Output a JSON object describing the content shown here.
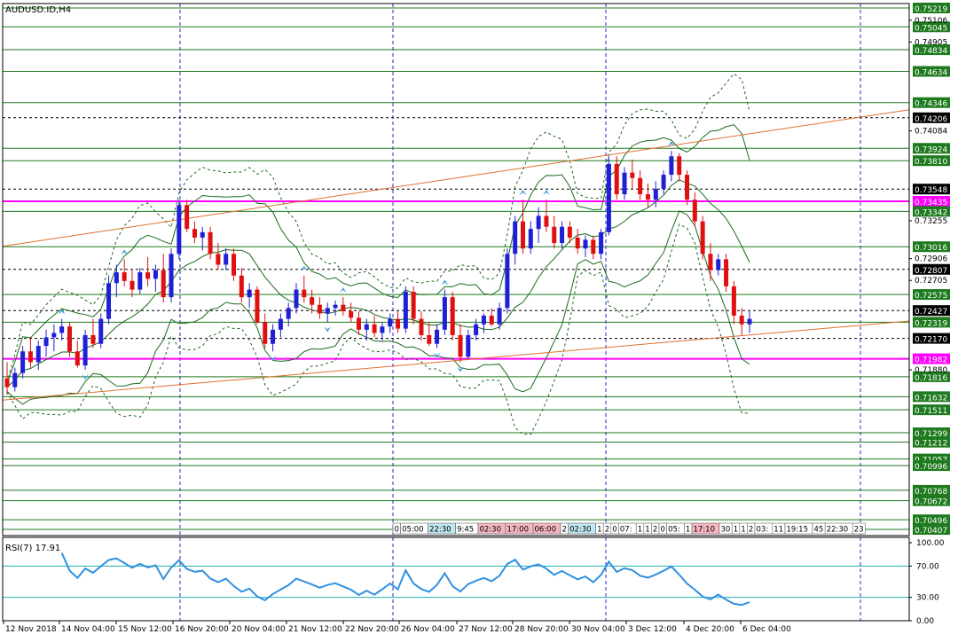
{
  "window": {
    "symbol_title": "AUDUSD.ID,H4"
  },
  "rsi": {
    "label": "RSI(7) 17.91",
    "levels": [
      "100.00",
      "70.00",
      "30.00",
      "0.00"
    ]
  },
  "colors": {
    "bull": "#1f1fd6",
    "bear": "#e01010",
    "grid_v": "#2a2acd",
    "hline_green": "#1e7a1e",
    "hline_magenta": "#ff00ff",
    "hline_dash": "#000000",
    "trend": "#e07030",
    "rsi_line": "#3090e0",
    "rsi_level": "#20b0b0",
    "bb": "#1a6a1a",
    "label_green": "#1e7a1e",
    "label_black": "#000000",
    "label_magenta": "#ff00ff"
  },
  "time_axis": {
    "labels": [
      "12 Nov 2018",
      "14 Nov 04:00",
      "15 Nov 12:00",
      "16 Nov 20:00",
      "20 Nov 04:00",
      "21 Nov 12:00",
      "22 Nov 20:00",
      "26 Nov 04:00",
      "27 Nov 12:00",
      "28 Nov 20:00",
      "30 Nov 04:00",
      "3 Dec 12:00",
      "4 Dec 20:00",
      "6 Dec 04:00"
    ]
  },
  "session_strip": {
    "cells": [
      {
        "text": "0",
        "bg": "#ffffff"
      },
      {
        "text": "05:00",
        "bg": "#ffffff"
      },
      {
        "text": "22:30",
        "bg": "#bfe8f0"
      },
      {
        "text": "9:45",
        "bg": "#ffffff"
      },
      {
        "text": "02:30",
        "bg": "#f5b6c0"
      },
      {
        "text": "17:00",
        "bg": "#f5b6c0"
      },
      {
        "text": "06:00",
        "bg": "#f5b6c0"
      },
      {
        "text": "2",
        "bg": "#ffffff"
      },
      {
        "text": "02:30",
        "bg": "#bfe8f0"
      },
      {
        "text": "1",
        "bg": "#ffffff"
      },
      {
        "text": "2",
        "bg": "#ffffff"
      },
      {
        "text": "0",
        "bg": "#ffffff"
      },
      {
        "text": "07:",
        "bg": "#ffffff"
      },
      {
        "text": "1",
        "bg": "#ffffff"
      },
      {
        "text": "1",
        "bg": "#ffffff"
      },
      {
        "text": "2",
        "bg": "#ffffff"
      },
      {
        "text": "0",
        "bg": "#ffffff"
      },
      {
        "text": "05:",
        "bg": "#ffffff"
      },
      {
        "text": "1",
        "bg": "#ffffff"
      },
      {
        "text": "17:10",
        "bg": "#f5b6c0"
      },
      {
        "text": "30",
        "bg": "#ffffff"
      },
      {
        "text": "1",
        "bg": "#ffffff"
      },
      {
        "text": "1",
        "bg": "#ffffff"
      },
      {
        "text": "2",
        "bg": "#ffffff"
      },
      {
        "text": "03:",
        "bg": "#ffffff"
      },
      {
        "text": "11",
        "bg": "#ffffff"
      },
      {
        "text": "19:15",
        "bg": "#ffffff"
      },
      {
        "text": "45",
        "bg": "#ffffff"
      },
      {
        "text": "22:30",
        "bg": "#ffffff"
      },
      {
        "text": "23",
        "bg": "#ffffff"
      }
    ]
  },
  "chart_data": {
    "type": "candlestick",
    "symbol": "AUDUSD.ID",
    "timeframe": "H4",
    "ylim": [
      0.7035,
      0.7526
    ],
    "price_scale_labels": [
      "0.75106",
      "0.74905",
      "0.74084",
      "0.73255",
      "0.72906",
      "0.72705",
      "0.71880"
    ],
    "levels": [
      {
        "price": "0.75219",
        "style": "green"
      },
      {
        "price": "0.75045",
        "style": "green"
      },
      {
        "price": "0.74834",
        "style": "green"
      },
      {
        "price": "0.74634",
        "style": "green"
      },
      {
        "price": "0.74346",
        "style": "green"
      },
      {
        "price": "0.74206",
        "style": "dash"
      },
      {
        "price": "0.73924",
        "style": "green"
      },
      {
        "price": "0.73810",
        "style": "green"
      },
      {
        "price": "0.73548",
        "style": "dash"
      },
      {
        "price": "0.73435",
        "style": "magenta"
      },
      {
        "price": "0.73342",
        "style": "green"
      },
      {
        "price": "0.73016",
        "style": "green"
      },
      {
        "price": "0.72807",
        "style": "dash"
      },
      {
        "price": "0.72575",
        "style": "green"
      },
      {
        "price": "0.72427",
        "style": "dash"
      },
      {
        "price": "0.72319",
        "style": "green"
      },
      {
        "price": "0.72170",
        "style": "dash"
      },
      {
        "price": "0.71982",
        "style": "magenta"
      },
      {
        "price": "0.71816",
        "style": "green"
      },
      {
        "price": "0.71632",
        "style": "green"
      },
      {
        "price": "0.71511",
        "style": "green"
      },
      {
        "price": "0.71299",
        "style": "green"
      },
      {
        "price": "0.71212",
        "style": "green"
      },
      {
        "price": "0.71057",
        "style": "green"
      },
      {
        "price": "0.70996",
        "style": "green"
      },
      {
        "price": "0.70768",
        "style": "green"
      },
      {
        "price": "0.70672",
        "style": "green"
      },
      {
        "price": "0.70496",
        "style": "green"
      },
      {
        "price": "0.70407",
        "style": "green"
      }
    ],
    "candles": [
      [
        0.718,
        0.7195,
        0.7165,
        0.7172
      ],
      [
        0.7172,
        0.719,
        0.7168,
        0.7185
      ],
      [
        0.7185,
        0.721,
        0.718,
        0.7205
      ],
      [
        0.7205,
        0.7218,
        0.719,
        0.7195
      ],
      [
        0.7195,
        0.7215,
        0.7188,
        0.721
      ],
      [
        0.721,
        0.7225,
        0.72,
        0.7218
      ],
      [
        0.7218,
        0.723,
        0.7205,
        0.7222
      ],
      [
        0.7222,
        0.7235,
        0.7215,
        0.7228
      ],
      [
        0.7228,
        0.7232,
        0.72,
        0.7205
      ],
      [
        0.7205,
        0.7215,
        0.719,
        0.7192
      ],
      [
        0.7192,
        0.7225,
        0.7188,
        0.722
      ],
      [
        0.722,
        0.7235,
        0.7208,
        0.7212
      ],
      [
        0.7212,
        0.724,
        0.7208,
        0.7235
      ],
      [
        0.7235,
        0.7275,
        0.723,
        0.7268
      ],
      [
        0.7268,
        0.7285,
        0.7255,
        0.7278
      ],
      [
        0.7278,
        0.729,
        0.7265,
        0.727
      ],
      [
        0.727,
        0.728,
        0.7255,
        0.7262
      ],
      [
        0.7262,
        0.7282,
        0.7258,
        0.7278
      ],
      [
        0.7278,
        0.7292,
        0.7265,
        0.7272
      ],
      [
        0.7272,
        0.7285,
        0.726,
        0.728
      ],
      [
        0.728,
        0.7295,
        0.725,
        0.7255
      ],
      [
        0.7255,
        0.73,
        0.725,
        0.7295
      ],
      [
        0.7295,
        0.7345,
        0.729,
        0.734
      ],
      [
        0.734,
        0.7345,
        0.7315,
        0.7318
      ],
      [
        0.7318,
        0.7325,
        0.7305,
        0.731
      ],
      [
        0.731,
        0.732,
        0.7298,
        0.7315
      ],
      [
        0.7315,
        0.732,
        0.729,
        0.7295
      ],
      [
        0.7295,
        0.7305,
        0.728,
        0.7285
      ],
      [
        0.7285,
        0.73,
        0.728,
        0.7295
      ],
      [
        0.7295,
        0.73,
        0.727,
        0.7275
      ],
      [
        0.7275,
        0.7282,
        0.725,
        0.7255
      ],
      [
        0.7255,
        0.7268,
        0.7245,
        0.7262
      ],
      [
        0.7262,
        0.7265,
        0.723,
        0.7232
      ],
      [
        0.7232,
        0.724,
        0.7208,
        0.7212
      ],
      [
        0.7212,
        0.723,
        0.7205,
        0.7225
      ],
      [
        0.7225,
        0.724,
        0.7218,
        0.7235
      ],
      [
        0.7235,
        0.725,
        0.7228,
        0.7245
      ],
      [
        0.7245,
        0.7268,
        0.724,
        0.7262
      ],
      [
        0.7262,
        0.7275,
        0.725,
        0.7255
      ],
      [
        0.7255,
        0.7262,
        0.724,
        0.7248
      ],
      [
        0.7248,
        0.7255,
        0.7235,
        0.724
      ],
      [
        0.724,
        0.725,
        0.7232,
        0.7245
      ],
      [
        0.7245,
        0.7252,
        0.7238,
        0.7248
      ],
      [
        0.7248,
        0.7255,
        0.7238,
        0.7242
      ],
      [
        0.7242,
        0.725,
        0.7232,
        0.7236
      ],
      [
        0.7236,
        0.7242,
        0.722,
        0.7225
      ],
      [
        0.7225,
        0.7235,
        0.7215,
        0.723
      ],
      [
        0.723,
        0.7238,
        0.7218,
        0.7222
      ],
      [
        0.7222,
        0.7232,
        0.7215,
        0.7228
      ],
      [
        0.7228,
        0.724,
        0.7222,
        0.7235
      ],
      [
        0.7235,
        0.7242,
        0.7222,
        0.7226
      ],
      [
        0.7226,
        0.7265,
        0.7222,
        0.726
      ],
      [
        0.726,
        0.7265,
        0.723,
        0.7235
      ],
      [
        0.7235,
        0.7242,
        0.7215,
        0.722
      ],
      [
        0.722,
        0.7232,
        0.721,
        0.7212
      ],
      [
        0.7212,
        0.723,
        0.7208,
        0.7225
      ],
      [
        0.7225,
        0.7262,
        0.722,
        0.7255
      ],
      [
        0.7255,
        0.726,
        0.7215,
        0.722
      ],
      [
        0.722,
        0.723,
        0.7195,
        0.72
      ],
      [
        0.72,
        0.7225,
        0.7198,
        0.722
      ],
      [
        0.722,
        0.7235,
        0.7215,
        0.723
      ],
      [
        0.723,
        0.724,
        0.7222,
        0.7238
      ],
      [
        0.7238,
        0.7245,
        0.7228,
        0.723
      ],
      [
        0.723,
        0.725,
        0.7225,
        0.7245
      ],
      [
        0.7245,
        0.73,
        0.724,
        0.7295
      ],
      [
        0.7295,
        0.733,
        0.7285,
        0.7325
      ],
      [
        0.7325,
        0.7345,
        0.7295,
        0.73
      ],
      [
        0.73,
        0.7325,
        0.7295,
        0.7318
      ],
      [
        0.7318,
        0.7338,
        0.7305,
        0.733
      ],
      [
        0.733,
        0.7345,
        0.7315,
        0.732
      ],
      [
        0.732,
        0.733,
        0.73,
        0.7305
      ],
      [
        0.7305,
        0.7325,
        0.73,
        0.732
      ],
      [
        0.732,
        0.7325,
        0.7305,
        0.731
      ],
      [
        0.731,
        0.7318,
        0.7295,
        0.73
      ],
      [
        0.73,
        0.7312,
        0.7292,
        0.7308
      ],
      [
        0.7308,
        0.7312,
        0.729,
        0.7295
      ],
      [
        0.7295,
        0.7318,
        0.729,
        0.7315
      ],
      [
        0.7315,
        0.7385,
        0.7312,
        0.7378
      ],
      [
        0.7378,
        0.7385,
        0.7345,
        0.735
      ],
      [
        0.735,
        0.7375,
        0.7345,
        0.737
      ],
      [
        0.737,
        0.7382,
        0.7355,
        0.7365
      ],
      [
        0.7365,
        0.7372,
        0.7345,
        0.735
      ],
      [
        0.735,
        0.736,
        0.7338,
        0.7345
      ],
      [
        0.7345,
        0.7362,
        0.7338,
        0.7355
      ],
      [
        0.7355,
        0.7372,
        0.735,
        0.7368
      ],
      [
        0.7368,
        0.739,
        0.7362,
        0.7385
      ],
      [
        0.7385,
        0.7388,
        0.7362,
        0.7368
      ],
      [
        0.7368,
        0.7372,
        0.734,
        0.7345
      ],
      [
        0.7345,
        0.7352,
        0.732,
        0.7325
      ],
      [
        0.7325,
        0.733,
        0.729,
        0.7295
      ],
      [
        0.7295,
        0.7305,
        0.727,
        0.728
      ],
      [
        0.728,
        0.7295,
        0.7275,
        0.729
      ],
      [
        0.729,
        0.7295,
        0.726,
        0.7265
      ],
      [
        0.7265,
        0.727,
        0.723,
        0.7238
      ],
      [
        0.7238,
        0.7245,
        0.722,
        0.723
      ],
      [
        0.723,
        0.7242,
        0.7222,
        0.7235
      ]
    ]
  }
}
